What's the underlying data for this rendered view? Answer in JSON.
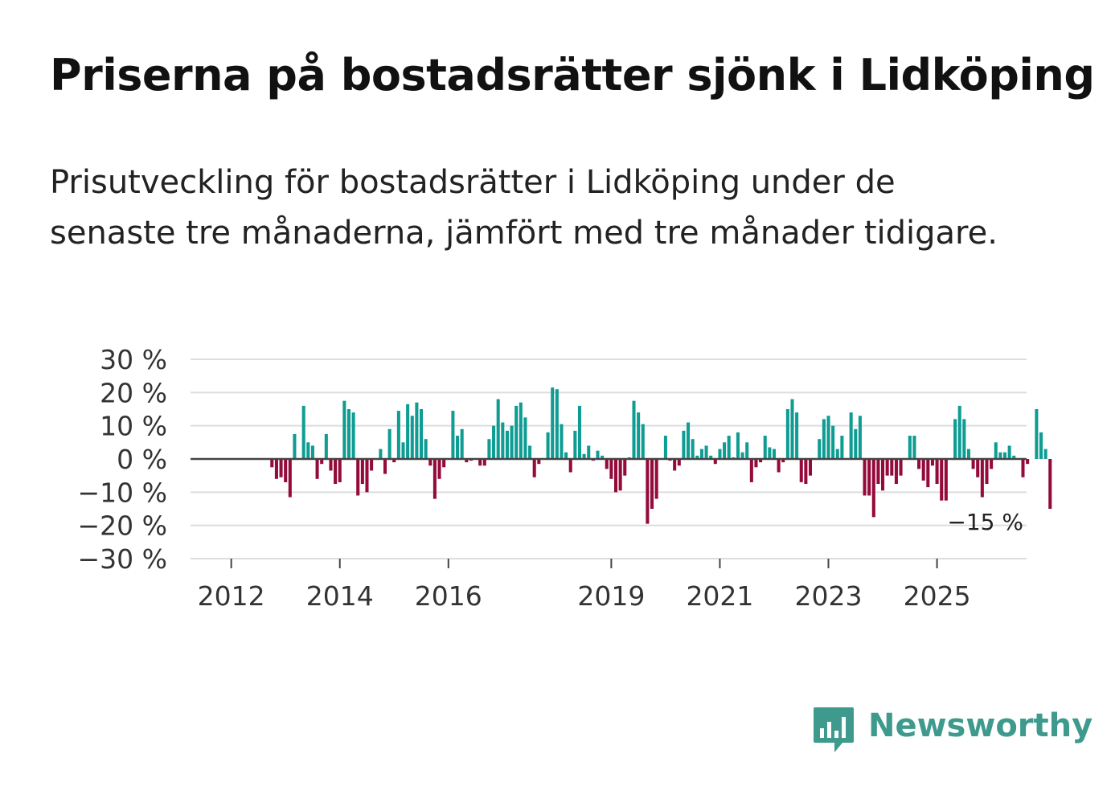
{
  "title": "Priserna på bostadsrätter sjönk i Lidköping",
  "subtitle": "Prisutveckling för bostadsrätter i Lidköping under de senaste tre månaderna, jämfört med tre månader tidigare.",
  "brand": {
    "name": "Newsworthy",
    "color": "#3e9a8c",
    "icon": "chart-bubble-icon"
  },
  "chart_data": {
    "type": "bar",
    "title": "Priserna på bostadsrätter sjönk i Lidköping",
    "xlabel": "",
    "ylabel": "",
    "ylim": [
      -30,
      30
    ],
    "y_ticks": [
      30,
      20,
      10,
      0,
      -10,
      -20,
      -30
    ],
    "y_tick_labels": [
      "30 %",
      "20 %",
      "10 %",
      "0 %",
      "−10 %",
      "−20 %",
      "−30 %"
    ],
    "x_tick_labels": [
      "2012",
      "2014",
      "2016",
      "2019",
      "2021",
      "2023",
      "2025"
    ],
    "x_tick_years": [
      2012,
      2014,
      2016,
      2019,
      2021,
      2023,
      2025
    ],
    "x_range": [
      2011.25,
      2026.65
    ],
    "start": 2011.75,
    "step_months": 1,
    "positive_color": "#0e9c93",
    "negative_color": "#930a3b",
    "grid": true,
    "annotation": {
      "text": "−15 %",
      "value": -15
    },
    "values": [
      0,
      0,
      0,
      0,
      0,
      0,
      0,
      0,
      0,
      0,
      0,
      0,
      -2.5,
      -6,
      -5.5,
      -7,
      -11.5,
      7.5,
      0,
      16,
      5,
      4,
      -6,
      -1.5,
      7.5,
      -3.5,
      -7.5,
      -7,
      17.5,
      15,
      14,
      -11,
      -7.5,
      -10,
      -3.5,
      0,
      3,
      -4.5,
      9,
      -1,
      14.5,
      5,
      16.5,
      13,
      17,
      15,
      6,
      -2,
      -12,
      -6,
      -2.5,
      0,
      14.5,
      7,
      9,
      -1,
      -0.5,
      0,
      -2,
      -2,
      6,
      10,
      18,
      11,
      8.5,
      10,
      16,
      17,
      12.5,
      4,
      -5.5,
      -1.5,
      0,
      8,
      21.5,
      21,
      10.5,
      2,
      -4,
      8.5,
      16,
      1.5,
      4,
      -0.5,
      2.5,
      1,
      -3,
      -6,
      -10,
      -9.5,
      -5,
      0.5,
      17.5,
      14,
      10.5,
      -19.5,
      -15,
      -12,
      0,
      7,
      -0.5,
      -3.5,
      -2,
      8.5,
      11,
      6,
      1,
      3,
      4,
      1,
      -1.5,
      3,
      5,
      7,
      0.5,
      8,
      2,
      5,
      -7,
      -2.5,
      -1,
      7,
      3.5,
      3,
      -4,
      -1,
      15,
      18,
      14,
      -7,
      -7.5,
      -5,
      0,
      6,
      12,
      13,
      10,
      3,
      7,
      0,
      14,
      9,
      13,
      -11,
      -11,
      -17.5,
      -7.5,
      -9.5,
      -5,
      -5,
      -7.5,
      -5,
      0,
      7,
      7,
      -3,
      -6.5,
      -8.5,
      -2,
      -7.5,
      -12.5,
      -12.5,
      0,
      12,
      16,
      12,
      3,
      -3,
      -5.5,
      -11.5,
      -7.5,
      -3,
      5,
      2,
      2,
      4,
      1,
      0,
      -5.5,
      -1.5,
      0,
      15,
      8,
      3,
      -15
    ]
  }
}
